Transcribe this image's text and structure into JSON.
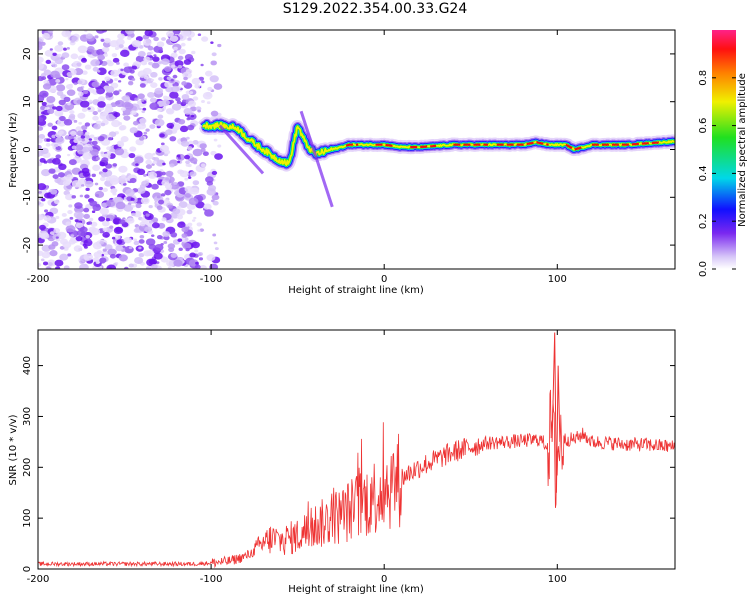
{
  "title": "S129.2022.354.00.33.G24",
  "chart_data": [
    {
      "type": "heatmap",
      "title": "",
      "xlabel": "Height of straight line (km)",
      "ylabel": "Frequency (Hz)",
      "xlim": [
        -200,
        168
      ],
      "ylim": [
        -25,
        25
      ],
      "xticks": [
        -200,
        -100,
        0,
        100
      ],
      "xtick_labels": [
        "-200",
        "-100",
        "0",
        "100"
      ],
      "yticks": [
        -20,
        -10,
        0,
        10,
        20
      ],
      "ytick_labels": [
        "-20",
        "-10",
        "0",
        "10",
        "20"
      ],
      "colorbar": {
        "label": "Normalized spectral amplitude",
        "range": [
          0,
          1
        ],
        "ticks": [
          0.0,
          0.2,
          0.4,
          0.6,
          0.8
        ],
        "tick_labels": [
          "0.0",
          "0.2",
          "0.4",
          "0.6",
          "0.8"
        ]
      },
      "signal_ridge": {
        "x": [
          -105,
          -95,
          -85,
          -78,
          -70,
          -62,
          -55,
          -50,
          -45,
          -40,
          -35,
          -30,
          -25,
          -20,
          -10,
          0,
          10,
          20,
          40,
          60,
          80,
          88,
          95,
          105,
          110,
          120,
          140,
          160,
          168
        ],
        "y": [
          5,
          5,
          4.5,
          2,
          0,
          -2,
          -3,
          5,
          1,
          -1,
          -0.5,
          0,
          0.5,
          1,
          1,
          1,
          0.5,
          0.5,
          1,
          1,
          1,
          1.5,
          1,
          1,
          0,
          1,
          1,
          1.5,
          1.7
        ]
      },
      "noise_region_x": [
        -200,
        -95
      ],
      "grid": false
    },
    {
      "type": "line",
      "title": "",
      "xlabel": "Height of straight line (km)",
      "ylabel": "SNR (10 * v/v)",
      "xlim": [
        -200,
        168
      ],
      "ylim": [
        0,
        470
      ],
      "xticks": [
        -200,
        -100,
        0,
        100
      ],
      "xtick_labels": [
        "-200",
        "-100",
        "0",
        "100"
      ],
      "yticks": [
        0,
        100,
        200,
        300,
        400
      ],
      "ytick_labels": [
        "0",
        "100",
        "200",
        "300",
        "400"
      ],
      "series": [
        {
          "color": "#ee3333",
          "x": [
            -200,
            -150,
            -110,
            -100,
            -90,
            -80,
            -75,
            -70,
            -65,
            -60,
            -55,
            -50,
            -45,
            -40,
            -35,
            -30,
            -25,
            -20,
            -15,
            -10,
            -5,
            0,
            10,
            20,
            30,
            40,
            50,
            60,
            70,
            80,
            90,
            95,
            97,
            99,
            100,
            102,
            110,
            115,
            120,
            130,
            140,
            150,
            160,
            168
          ],
          "y": [
            10,
            10,
            10,
            12,
            15,
            25,
            35,
            50,
            60,
            55,
            60,
            65,
            75,
            85,
            90,
            100,
            105,
            115,
            125,
            135,
            145,
            160,
            180,
            200,
            215,
            230,
            240,
            248,
            250,
            252,
            255,
            240,
            300,
            180,
            220,
            255,
            255,
            265,
            250,
            248,
            245,
            245,
            242,
            240
          ]
        }
      ],
      "grid": false
    }
  ]
}
